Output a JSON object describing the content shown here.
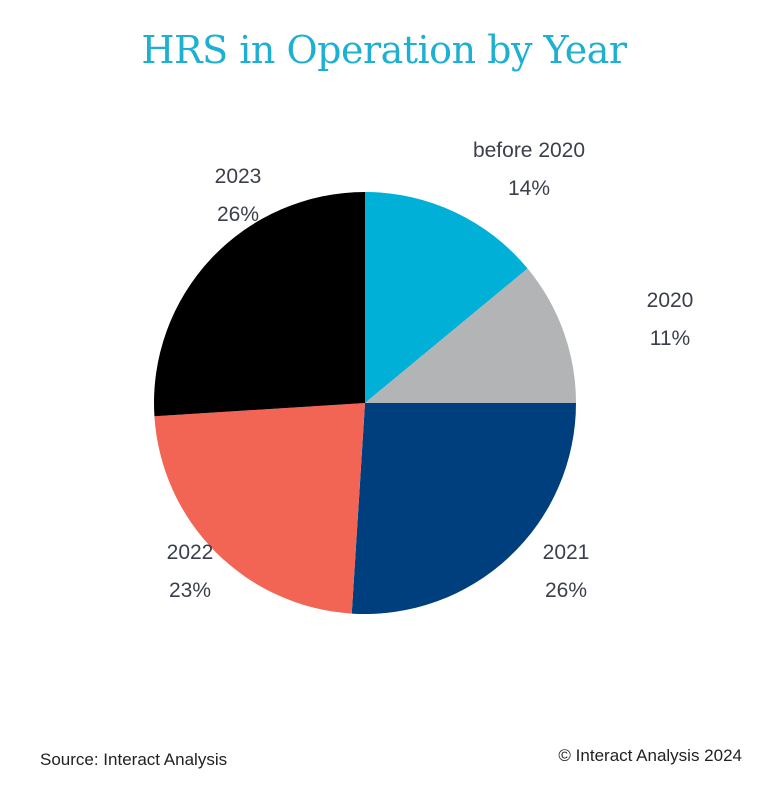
{
  "title": "HRS in Operation by Year",
  "chart_data": {
    "type": "pie",
    "title": "HRS in Operation by Year",
    "slices": [
      {
        "label": "before 2020",
        "value": 14,
        "display": "14%",
        "color": "#00b0d6"
      },
      {
        "label": "2020",
        "value": 11,
        "display": "11%",
        "color": "#b3b4b6"
      },
      {
        "label": "2021",
        "value": 26,
        "display": "26%",
        "color": "#003f7d"
      },
      {
        "label": "2022",
        "value": 23,
        "display": "23%",
        "color": "#f26554"
      },
      {
        "label": "2023",
        "value": 26,
        "display": "26%",
        "color": "#000000"
      }
    ]
  },
  "footer": {
    "source": "Source: Interact Analysis",
    "copyright": "© Interact Analysis 2024"
  }
}
